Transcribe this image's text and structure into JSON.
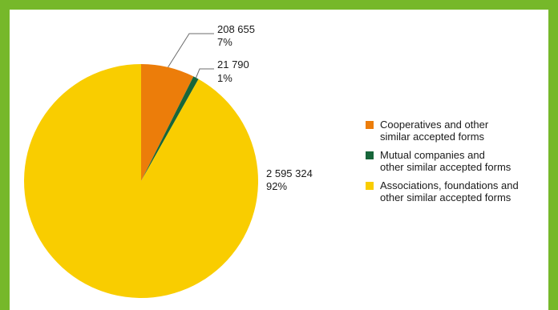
{
  "chart_data": {
    "type": "pie",
    "categories": [
      "Cooperatives and other similar accepted forms",
      "Mutual companies and other similar accepted forms",
      "Associations, foundations and other similar accepted forms"
    ],
    "values": [
      208655,
      21790,
      2595324
    ],
    "value_labels": [
      "208 655",
      "21 790",
      "2 595 324"
    ],
    "percent_labels": [
      "7%",
      "1%",
      "92%"
    ],
    "colors": [
      "#ec7d0a",
      "#17663a",
      "#f9cd00"
    ],
    "legend": {
      "placement": "right",
      "entries": [
        {
          "lines": [
            "Cooperatives and other",
            "similar accepted forms"
          ]
        },
        {
          "lines": [
            "Mutual companies and",
            "other similar accepted forms"
          ]
        },
        {
          "lines": [
            "Associations, foundations and",
            "other similar accepted forms"
          ]
        }
      ]
    }
  },
  "frame_color": "#76b82a"
}
